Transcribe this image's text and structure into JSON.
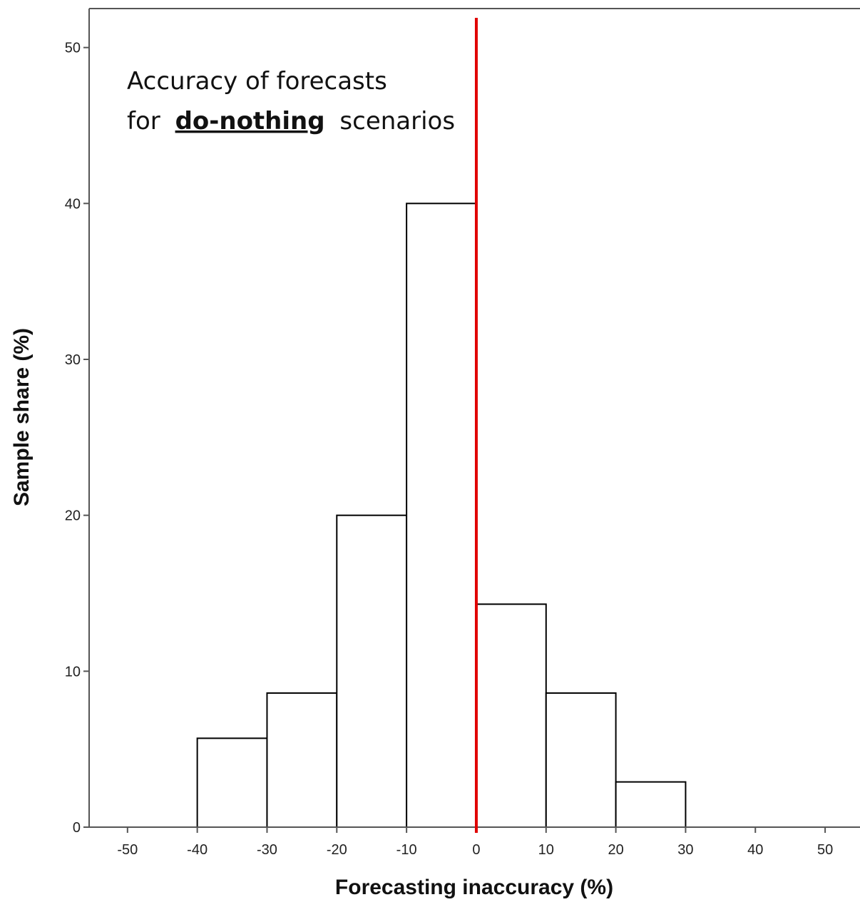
{
  "chart_data": {
    "type": "bar",
    "title": "",
    "xlabel": "Forecasting inaccuracy (%)",
    "ylabel": "Sample share (%)",
    "xlim": [
      -55.5,
      55
    ],
    "ylim": [
      0,
      52.5
    ],
    "xticks": [
      -50,
      -40,
      -30,
      -20,
      -10,
      0,
      10,
      20,
      30,
      40,
      50
    ],
    "yticks": [
      0,
      10,
      20,
      30,
      40,
      50
    ],
    "bins": [
      {
        "x0": -40,
        "x1": -30,
        "value": 5.7
      },
      {
        "x0": -30,
        "x1": -20,
        "value": 8.6
      },
      {
        "x0": -20,
        "x1": -10,
        "value": 20.0
      },
      {
        "x0": -10,
        "x1": 0,
        "value": 40.0
      },
      {
        "x0": 0,
        "x1": 10,
        "value": 14.3
      },
      {
        "x0": 10,
        "x1": 20,
        "value": 8.6
      },
      {
        "x0": 20,
        "x1": 30,
        "value": 2.9
      }
    ],
    "reference_line": {
      "x": 0,
      "color": "#e00000"
    },
    "bar_fill": "#ffffff",
    "bar_stroke": "#000000",
    "grid": false,
    "annotation": {
      "line1": "Accuracy of forecasts",
      "line2_prefix": "for",
      "line2_emphasis": "do-nothing",
      "line2_suffix": "scenarios"
    }
  }
}
